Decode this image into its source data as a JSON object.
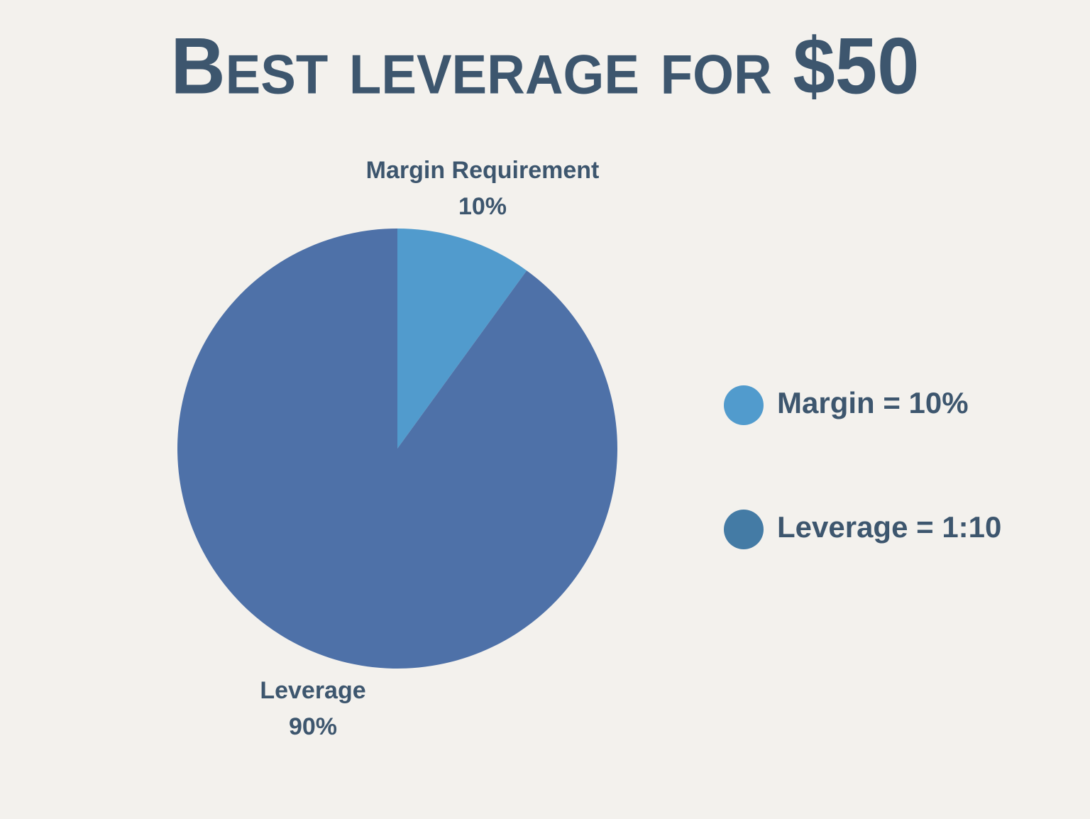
{
  "chart_data": {
    "type": "pie",
    "title": "Best leverage for $50",
    "categories": [
      "Margin Requirement",
      "Leverage"
    ],
    "values": [
      10,
      90
    ],
    "value_labels": [
      "10%",
      "90%"
    ],
    "colors": [
      "#519bcd",
      "#4e71a8"
    ],
    "legend": [
      {
        "label": "Margin = 10%",
        "color": "#519bcd"
      },
      {
        "label": "Leverage = 1:10",
        "color": "#447ba5"
      }
    ]
  }
}
